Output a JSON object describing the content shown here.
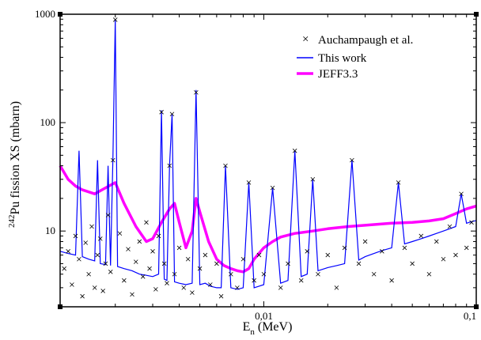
{
  "chart_data": {
    "type": "line",
    "title": "",
    "xlabel_main": "E",
    "xlabel_sub": "n",
    "xlabel_unit": " (MeV)",
    "ylabel_sup": "242",
    "ylabel_main": "Pu fission XS (mbarn)",
    "x_scale": "log",
    "y_scale": "log",
    "xlim": [
      0.0011,
      0.1
    ],
    "ylim": [
      2,
      1000
    ],
    "x_ticks": [
      {
        "value": 0.01,
        "label": "0,01"
      },
      {
        "value": 0.1,
        "label": "0,1"
      }
    ],
    "y_ticks": [
      {
        "value": 10,
        "label": "10"
      },
      {
        "value": 100,
        "label": "100"
      },
      {
        "value": 1000,
        "label": "1000"
      }
    ],
    "grid": false,
    "legend_position": "top-right",
    "series": [
      {
        "name": "Auchampaugh et al.",
        "style": "x-markers",
        "color": "#000000",
        "description_points": [
          [
            0.00115,
            4.5
          ],
          [
            0.0012,
            6.5
          ],
          [
            0.00125,
            3.2
          ],
          [
            0.0013,
            9.0
          ],
          [
            0.00135,
            5.5
          ],
          [
            0.0014,
            2.5
          ],
          [
            0.00145,
            7.8
          ],
          [
            0.0015,
            4.0
          ],
          [
            0.00155,
            11.0
          ],
          [
            0.0016,
            3.0
          ],
          [
            0.00165,
            6.0
          ],
          [
            0.0017,
            8.5
          ],
          [
            0.00175,
            2.8
          ],
          [
            0.0018,
            5.0
          ],
          [
            0.00185,
            14.0
          ],
          [
            0.0019,
            4.2
          ],
          [
            0.00195,
            45.0
          ],
          [
            0.002,
            890.0
          ],
          [
            0.0021,
            9.5
          ],
          [
            0.0022,
            3.5
          ],
          [
            0.0023,
            6.8
          ],
          [
            0.0024,
            2.6
          ],
          [
            0.0025,
            5.2
          ],
          [
            0.0026,
            8.0
          ],
          [
            0.0027,
            3.8
          ],
          [
            0.0028,
            12.0
          ],
          [
            0.0029,
            4.5
          ],
          [
            0.003,
            6.5
          ],
          [
            0.0031,
            2.9
          ],
          [
            0.0032,
            9.0
          ],
          [
            0.0033,
            125.0
          ],
          [
            0.0034,
            5.0
          ],
          [
            0.0035,
            3.3
          ],
          [
            0.0036,
            40.0
          ],
          [
            0.0037,
            120.0
          ],
          [
            0.0038,
            4.0
          ],
          [
            0.004,
            7.0
          ],
          [
            0.0042,
            3.0
          ],
          [
            0.0044,
            5.5
          ],
          [
            0.0046,
            2.7
          ],
          [
            0.0048,
            190.0
          ],
          [
            0.005,
            4.5
          ],
          [
            0.0053,
            6.0
          ],
          [
            0.0056,
            3.2
          ],
          [
            0.006,
            5.0
          ],
          [
            0.0063,
            2.5
          ],
          [
            0.0066,
            40.0
          ],
          [
            0.007,
            4.0
          ],
          [
            0.0075,
            3.0
          ],
          [
            0.008,
            5.5
          ],
          [
            0.0085,
            28.0
          ],
          [
            0.009,
            3.5
          ],
          [
            0.0095,
            6.0
          ],
          [
            0.01,
            4.0
          ],
          [
            0.011,
            25.0
          ],
          [
            0.012,
            3.0
          ],
          [
            0.013,
            5.0
          ],
          [
            0.014,
            55.0
          ],
          [
            0.015,
            3.5
          ],
          [
            0.016,
            6.5
          ],
          [
            0.017,
            30.0
          ],
          [
            0.018,
            4.0
          ],
          [
            0.02,
            6.0
          ],
          [
            0.022,
            3.0
          ],
          [
            0.024,
            7.0
          ],
          [
            0.026,
            45.0
          ],
          [
            0.028,
            5.0
          ],
          [
            0.03,
            8.0
          ],
          [
            0.033,
            4.0
          ],
          [
            0.036,
            6.5
          ],
          [
            0.04,
            3.5
          ],
          [
            0.043,
            28.0
          ],
          [
            0.046,
            7.0
          ],
          [
            0.05,
            5.0
          ],
          [
            0.055,
            9.0
          ],
          [
            0.06,
            4.0
          ],
          [
            0.065,
            8.0
          ],
          [
            0.07,
            5.5
          ],
          [
            0.075,
            11.0
          ],
          [
            0.08,
            6.0
          ],
          [
            0.085,
            22.0
          ],
          [
            0.09,
            7.0
          ],
          [
            0.095,
            12.0
          ]
        ]
      },
      {
        "name": "This work",
        "style": "line",
        "color": "#0000ff",
        "points": [
          [
            0.0011,
            6.5
          ],
          [
            0.0012,
            6.2
          ],
          [
            0.0013,
            6.0
          ],
          [
            0.00135,
            55.0
          ],
          [
            0.0014,
            5.8
          ],
          [
            0.0015,
            5.5
          ],
          [
            0.0016,
            5.3
          ],
          [
            0.00165,
            45.0
          ],
          [
            0.0017,
            5.0
          ],
          [
            0.0018,
            4.9
          ],
          [
            0.00185,
            40.0
          ],
          [
            0.0019,
            4.8
          ],
          [
            0.00195,
            50.0
          ],
          [
            0.002,
            900.0
          ],
          [
            0.00205,
            4.7
          ],
          [
            0.0022,
            4.5
          ],
          [
            0.0024,
            4.3
          ],
          [
            0.0026,
            4.0
          ],
          [
            0.0028,
            3.9
          ],
          [
            0.003,
            3.8
          ],
          [
            0.0032,
            4.0
          ],
          [
            0.0033,
            130.0
          ],
          [
            0.0034,
            3.6
          ],
          [
            0.0035,
            3.5
          ],
          [
            0.0036,
            40.0
          ],
          [
            0.0037,
            120.0
          ],
          [
            0.0038,
            3.4
          ],
          [
            0.004,
            3.3
          ],
          [
            0.0043,
            3.2
          ],
          [
            0.0046,
            3.3
          ],
          [
            0.0048,
            200.0
          ],
          [
            0.005,
            3.2
          ],
          [
            0.0053,
            3.3
          ],
          [
            0.0056,
            3.1
          ],
          [
            0.006,
            3.0
          ],
          [
            0.0063,
            3.0
          ],
          [
            0.0066,
            40.0
          ],
          [
            0.007,
            3.0
          ],
          [
            0.0075,
            2.9
          ],
          [
            0.008,
            3.0
          ],
          [
            0.0085,
            28.0
          ],
          [
            0.009,
            3.0
          ],
          [
            0.0095,
            3.1
          ],
          [
            0.01,
            3.2
          ],
          [
            0.011,
            25.0
          ],
          [
            0.012,
            3.3
          ],
          [
            0.013,
            3.5
          ],
          [
            0.014,
            55.0
          ],
          [
            0.015,
            3.8
          ],
          [
            0.016,
            4.0
          ],
          [
            0.017,
            30.0
          ],
          [
            0.018,
            4.3
          ],
          [
            0.02,
            4.6
          ],
          [
            0.022,
            4.8
          ],
          [
            0.024,
            5.0
          ],
          [
            0.026,
            45.0
          ],
          [
            0.028,
            5.4
          ],
          [
            0.03,
            5.8
          ],
          [
            0.033,
            6.2
          ],
          [
            0.036,
            6.6
          ],
          [
            0.04,
            7.0
          ],
          [
            0.043,
            28.0
          ],
          [
            0.046,
            7.6
          ],
          [
            0.05,
            8.0
          ],
          [
            0.055,
            8.5
          ],
          [
            0.06,
            9.0
          ],
          [
            0.065,
            9.5
          ],
          [
            0.07,
            10.0
          ],
          [
            0.075,
            10.5
          ],
          [
            0.08,
            11.0
          ],
          [
            0.085,
            22.0
          ],
          [
            0.09,
            11.8
          ],
          [
            0.095,
            12.2
          ],
          [
            0.1,
            12.5
          ]
        ]
      },
      {
        "name": "JEFF3.3",
        "style": "line",
        "color": "#ff00ff",
        "points": [
          [
            0.0011,
            40.0
          ],
          [
            0.0012,
            30.0
          ],
          [
            0.0013,
            26.0
          ],
          [
            0.0014,
            24.0
          ],
          [
            0.0016,
            22.0
          ],
          [
            0.0018,
            25.0
          ],
          [
            0.002,
            28.0
          ],
          [
            0.0022,
            18.0
          ],
          [
            0.0025,
            11.0
          ],
          [
            0.0028,
            8.0
          ],
          [
            0.003,
            8.5
          ],
          [
            0.0033,
            12.0
          ],
          [
            0.0036,
            16.0
          ],
          [
            0.0038,
            18.0
          ],
          [
            0.004,
            12.0
          ],
          [
            0.0043,
            7.0
          ],
          [
            0.0046,
            10.0
          ],
          [
            0.0048,
            20.0
          ],
          [
            0.005,
            15.0
          ],
          [
            0.0055,
            8.0
          ],
          [
            0.006,
            5.5
          ],
          [
            0.0065,
            4.8
          ],
          [
            0.007,
            4.5
          ],
          [
            0.0075,
            4.3
          ],
          [
            0.008,
            4.2
          ],
          [
            0.0085,
            4.5
          ],
          [
            0.009,
            5.5
          ],
          [
            0.01,
            7.0
          ],
          [
            0.011,
            8.0
          ],
          [
            0.012,
            8.8
          ],
          [
            0.014,
            9.5
          ],
          [
            0.017,
            10.0
          ],
          [
            0.02,
            10.5
          ],
          [
            0.025,
            11.0
          ],
          [
            0.03,
            11.3
          ],
          [
            0.04,
            11.8
          ],
          [
            0.05,
            12.0
          ],
          [
            0.06,
            12.4
          ],
          [
            0.07,
            13.0
          ],
          [
            0.08,
            14.5
          ],
          [
            0.09,
            16.0
          ],
          [
            0.1,
            17.0
          ]
        ]
      }
    ]
  }
}
